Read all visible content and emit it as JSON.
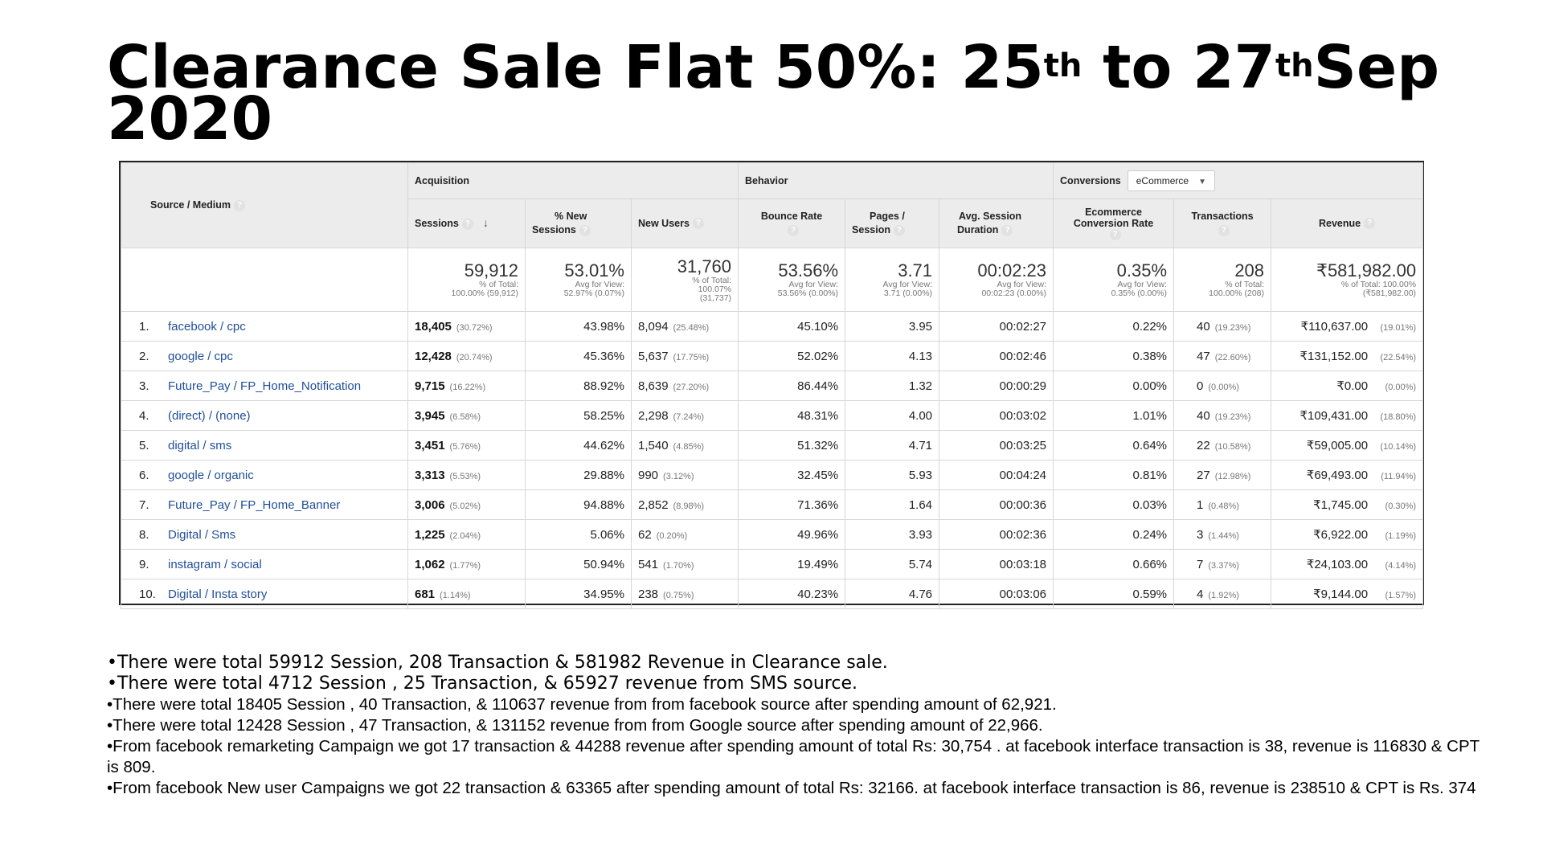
{
  "title": {
    "part1": "Clearance Sale Flat 50%: 25",
    "sup1": "th",
    "part2": " to 27",
    "sup2": "th",
    "part3": "Sep 2020"
  },
  "report": {
    "source_medium_label": "Source / Medium",
    "groups": {
      "acquisition": "Acquisition",
      "behavior": "Behavior",
      "conversions": "Conversions",
      "conversions_select": "eCommerce"
    },
    "columns": {
      "sessions": "Sessions",
      "pct_new_sessions_1": "% New",
      "pct_new_sessions_2": "Sessions",
      "new_users": "New Users",
      "bounce_rate": "Bounce Rate",
      "pages_session_1": "Pages /",
      "pages_session_2": "Session",
      "avg_duration_1": "Avg. Session",
      "avg_duration_2": "Duration",
      "ecom_rate_1": "Ecommerce",
      "ecom_rate_2": "Conversion Rate",
      "transactions": "Transactions",
      "revenue": "Revenue"
    },
    "totals": {
      "sessions": "59,912",
      "sessions_sub1": "% of Total:",
      "sessions_sub2": "100.00% (59,912)",
      "pct_new": "53.01%",
      "pct_new_sub1": "Avg for View:",
      "pct_new_sub2": "52.97% (0.07%)",
      "new_users": "31,760",
      "new_users_sub1": "% of Total:",
      "new_users_sub2": "100.07%",
      "new_users_sub3": "(31,737)",
      "bounce": "53.56%",
      "bounce_sub1": "Avg for View:",
      "bounce_sub2": "53.56% (0.00%)",
      "pages": "3.71",
      "pages_sub1": "Avg for View:",
      "pages_sub2": "3.71 (0.00%)",
      "duration": "00:02:23",
      "duration_sub1": "Avg for View:",
      "duration_sub2": "00:02:23 (0.00%)",
      "ecom": "0.35%",
      "ecom_sub1": "Avg for View:",
      "ecom_sub2": "0.35% (0.00%)",
      "transactions": "208",
      "transactions_sub1": "% of Total:",
      "transactions_sub2": "100.00% (208)",
      "revenue": "₹581,982.00",
      "revenue_sub1": "% of Total: 100.00%",
      "revenue_sub2": "(₹581,982.00)"
    },
    "rows": [
      {
        "n": "1.",
        "src": "facebook / cpc",
        "s": "18,405",
        "sp": "(30.72%)",
        "pn": "43.98%",
        "nu": "8,094",
        "nup": "(25.48%)",
        "br": "45.10%",
        "ps": "3.95",
        "dur": "00:02:27",
        "ecr": "0.22%",
        "tr": "40",
        "trp": "(19.23%)",
        "rev": "₹110,637.00",
        "revp": "(19.01%)"
      },
      {
        "n": "2.",
        "src": "google / cpc",
        "s": "12,428",
        "sp": "(20.74%)",
        "pn": "45.36%",
        "nu": "5,637",
        "nup": "(17.75%)",
        "br": "52.02%",
        "ps": "4.13",
        "dur": "00:02:46",
        "ecr": "0.38%",
        "tr": "47",
        "trp": "(22.60%)",
        "rev": "₹131,152.00",
        "revp": "(22.54%)"
      },
      {
        "n": "3.",
        "src": "Future_Pay / FP_Home_Notification",
        "s": "9,715",
        "sp": "(16.22%)",
        "pn": "88.92%",
        "nu": "8,639",
        "nup": "(27.20%)",
        "br": "86.44%",
        "ps": "1.32",
        "dur": "00:00:29",
        "ecr": "0.00%",
        "tr": "0",
        "trp": "(0.00%)",
        "rev": "₹0.00",
        "revp": "(0.00%)"
      },
      {
        "n": "4.",
        "src": "(direct) / (none)",
        "s": "3,945",
        "sp": "(6.58%)",
        "pn": "58.25%",
        "nu": "2,298",
        "nup": "(7.24%)",
        "br": "48.31%",
        "ps": "4.00",
        "dur": "00:03:02",
        "ecr": "1.01%",
        "tr": "40",
        "trp": "(19.23%)",
        "rev": "₹109,431.00",
        "revp": "(18.80%)"
      },
      {
        "n": "5.",
        "src": "digital / sms",
        "s": "3,451",
        "sp": "(5.76%)",
        "pn": "44.62%",
        "nu": "1,540",
        "nup": "(4.85%)",
        "br": "51.32%",
        "ps": "4.71",
        "dur": "00:03:25",
        "ecr": "0.64%",
        "tr": "22",
        "trp": "(10.58%)",
        "rev": "₹59,005.00",
        "revp": "(10.14%)"
      },
      {
        "n": "6.",
        "src": "google / organic",
        "s": "3,313",
        "sp": "(5.53%)",
        "pn": "29.88%",
        "nu": "990",
        "nup": "(3.12%)",
        "br": "32.45%",
        "ps": "5.93",
        "dur": "00:04:24",
        "ecr": "0.81%",
        "tr": "27",
        "trp": "(12.98%)",
        "rev": "₹69,493.00",
        "revp": "(11.94%)"
      },
      {
        "n": "7.",
        "src": "Future_Pay / FP_Home_Banner",
        "s": "3,006",
        "sp": "(5.02%)",
        "pn": "94.88%",
        "nu": "2,852",
        "nup": "(8.98%)",
        "br": "71.36%",
        "ps": "1.64",
        "dur": "00:00:36",
        "ecr": "0.03%",
        "tr": "1",
        "trp": "(0.48%)",
        "rev": "₹1,745.00",
        "revp": "(0.30%)"
      },
      {
        "n": "8.",
        "src": "Digital / Sms",
        "s": "1,225",
        "sp": "(2.04%)",
        "pn": "5.06%",
        "nu": "62",
        "nup": "(0.20%)",
        "br": "49.96%",
        "ps": "3.93",
        "dur": "00:02:36",
        "ecr": "0.24%",
        "tr": "3",
        "trp": "(1.44%)",
        "rev": "₹6,922.00",
        "revp": "(1.19%)"
      },
      {
        "n": "9.",
        "src": "instagram / social",
        "s": "1,062",
        "sp": "(1.77%)",
        "pn": "50.94%",
        "nu": "541",
        "nup": "(1.70%)",
        "br": "19.49%",
        "ps": "5.74",
        "dur": "00:03:18",
        "ecr": "0.66%",
        "tr": "7",
        "trp": "(3.37%)",
        "rev": "₹24,103.00",
        "revp": "(4.14%)"
      },
      {
        "n": "10.",
        "src": "Digital / Insta story",
        "s": "681",
        "sp": "(1.14%)",
        "pn": "34.95%",
        "nu": "238",
        "nup": "(0.75%)",
        "br": "40.23%",
        "ps": "4.76",
        "dur": "00:03:06",
        "ecr": "0.59%",
        "tr": "4",
        "trp": "(1.92%)",
        "rev": "₹9,144.00",
        "revp": "(1.57%)"
      }
    ]
  },
  "notes": [
    "•There were total 59912 Session, 208 Transaction & 581982 Revenue in Clearance sale.",
    "•There were total 4712 Session , 25 Transaction, & 65927 revenue from SMS source.",
    "•There were total 18405 Session , 40 Transaction, & 110637 revenue from from facebook source after spending amount of 62,921.",
    "•There were total 12428 Session , 47 Transaction, & 131152 revenue from from Google source after spending amount of 22,966.",
    "•From facebook remarketing Campaign  we got 17 transaction & 44288 revenue after spending amount of total Rs:  30,754 .  at facebook interface transaction is 38, revenue is 116830  & CPT is 809.",
    "•From facebook  New user Campaigns  we got  22 transaction & 63365 after spending amount of total Rs: 32166. at facebook interface transaction is 86, revenue is 238510 & CPT is Rs. 374"
  ]
}
